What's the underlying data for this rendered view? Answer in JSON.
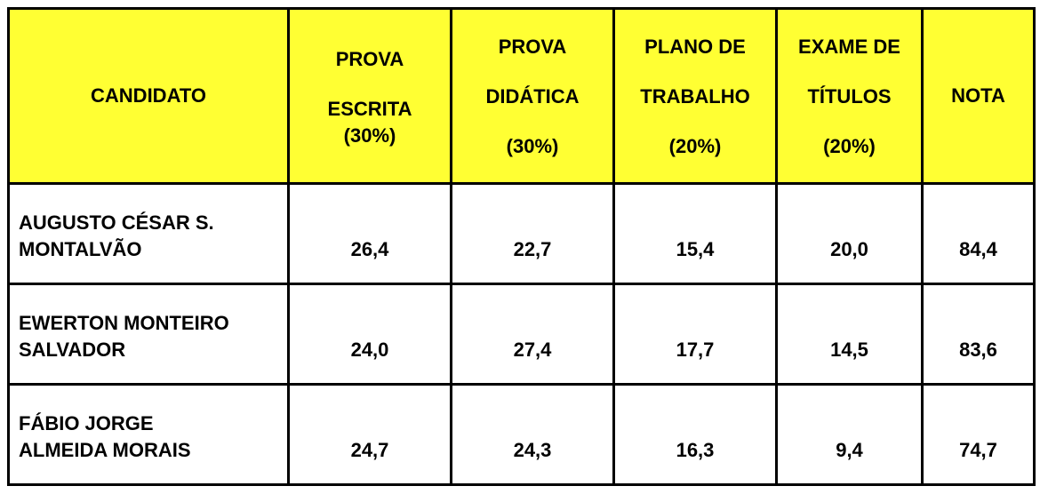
{
  "colors": {
    "header_bg": "#ffff33",
    "border": "#000000"
  },
  "headers": [
    {
      "lines": [
        "CANDIDATO"
      ]
    },
    {
      "lines": [
        "PROVA",
        "ESCRITA",
        "(30%)"
      ]
    },
    {
      "lines": [
        "PROVA",
        "DIDÁTICA",
        "(30%)"
      ]
    },
    {
      "lines": [
        "PLANO DE",
        "TRABALHO",
        "(20%)"
      ]
    },
    {
      "lines": [
        "EXAME DE",
        "TÍTULOS",
        "(20%)"
      ]
    },
    {
      "lines": [
        "NOTA"
      ]
    }
  ],
  "rows": [
    {
      "name": [
        "AUGUSTO CÉSAR S.",
        "MONTALVÃO"
      ],
      "values": [
        "26,4",
        "22,7",
        "15,4",
        "20,0",
        "84,4"
      ]
    },
    {
      "name": [
        "EWERTON MONTEIRO",
        "SALVADOR"
      ],
      "values": [
        "24,0",
        "27,4",
        "17,7",
        "14,5",
        "83,6"
      ]
    },
    {
      "name": [
        "FÁBIO JORGE",
        "ALMEIDA MORAIS"
      ],
      "values": [
        "24,7",
        "24,3",
        "16,3",
        "9,4",
        "74,7"
      ]
    }
  ]
}
